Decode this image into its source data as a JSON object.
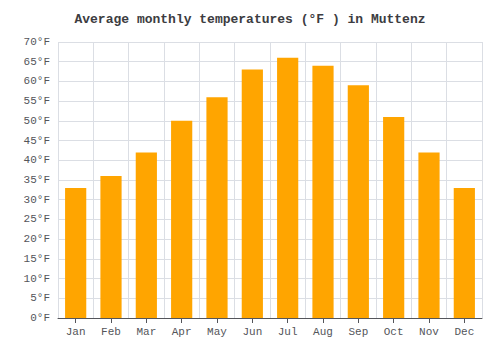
{
  "chart_data": {
    "type": "bar",
    "title": "Average monthly temperatures (°F ) in Muttenz",
    "categories": [
      "Jan",
      "Feb",
      "Mar",
      "Apr",
      "May",
      "Jun",
      "Jul",
      "Aug",
      "Sep",
      "Oct",
      "Nov",
      "Dec"
    ],
    "values": [
      33,
      36,
      42,
      50,
      56,
      63,
      66,
      64,
      59,
      51,
      42,
      33
    ],
    "color": "#FFA500",
    "ylim": [
      0,
      70
    ],
    "yticks": [
      {
        "value": 0,
        "label": "0°F"
      },
      {
        "value": 5,
        "label": "5°F"
      },
      {
        "value": 10,
        "label": "10°F"
      },
      {
        "value": 15,
        "label": "15°F"
      },
      {
        "value": 20,
        "label": "20°F"
      },
      {
        "value": 25,
        "label": "25°F"
      },
      {
        "value": 30,
        "label": "30°F"
      },
      {
        "value": 35,
        "label": "35°F"
      },
      {
        "value": 40,
        "label": "40°F"
      },
      {
        "value": 45,
        "label": "45°F"
      },
      {
        "value": 50,
        "label": "50°F"
      },
      {
        "value": 55,
        "label": "55°F"
      },
      {
        "value": 60,
        "label": "60°F"
      },
      {
        "value": 65,
        "label": "65°F"
      },
      {
        "value": 70,
        "label": "70°F"
      }
    ],
    "grid": true
  }
}
